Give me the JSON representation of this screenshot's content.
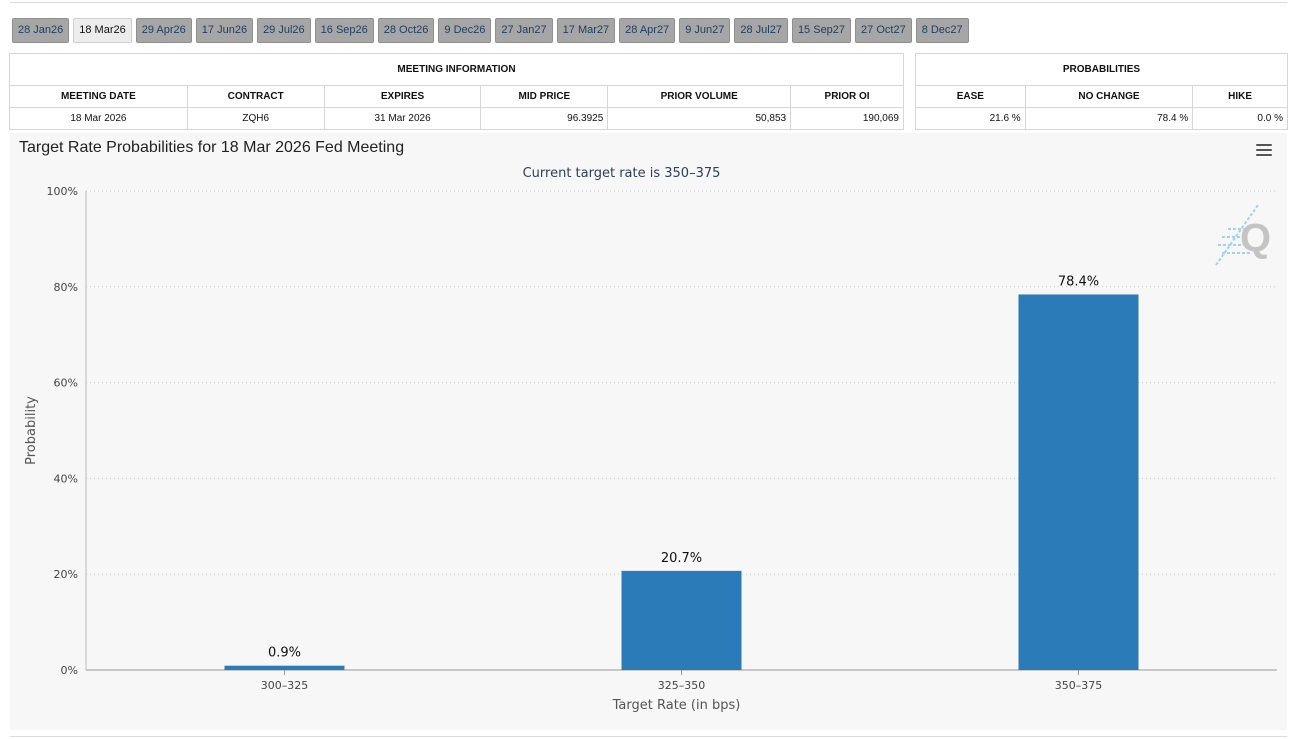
{
  "tabs": [
    "28 Jan26",
    "18 Mar26",
    "29 Apr26",
    "17 Jun26",
    "29 Jul26",
    "16 Sep26",
    "28 Oct26",
    "9 Dec26",
    "27 Jan27",
    "17 Mar27",
    "28 Apr27",
    "9 Jun27",
    "28 Jul27",
    "15 Sep27",
    "27 Oct27",
    "8 Dec27"
  ],
  "active_tab": "18 Mar26",
  "meeting_info": {
    "title": "MEETING INFORMATION",
    "headers": [
      "MEETING DATE",
      "CONTRACT",
      "EXPIRES",
      "MID PRICE",
      "PRIOR VOLUME",
      "PRIOR OI"
    ],
    "values": [
      "18 Mar 2026",
      "ZQH6",
      "31 Mar 2026",
      "96.3925",
      "50,853",
      "190,069"
    ]
  },
  "probabilities": {
    "title": "PROBABILITIES",
    "headers": [
      "EASE",
      "NO CHANGE",
      "HIKE"
    ],
    "values": [
      "21.6 %",
      "78.4 %",
      "0.0 %"
    ]
  },
  "watermark": {
    "letter": "Q"
  },
  "chart_data": {
    "type": "bar",
    "title": "Target Rate Probabilities for 18 Mar 2026 Fed Meeting",
    "subtitle": "Current target rate is 350–375",
    "categories": [
      "300–325",
      "325–350",
      "350–375"
    ],
    "values": [
      0.9,
      20.7,
      78.4
    ],
    "data_labels": [
      "0.9%",
      "20.7%",
      "78.4%"
    ],
    "xlabel": "Target Rate (in bps)",
    "ylabel": "Probability",
    "ylim": [
      0,
      100
    ],
    "yticks": [
      0,
      20,
      40,
      60,
      80,
      100
    ],
    "ytick_labels": [
      "0%",
      "20%",
      "40%",
      "60%",
      "80%",
      "100%"
    ],
    "grid": true,
    "bar_color": "#2b7bb9"
  }
}
